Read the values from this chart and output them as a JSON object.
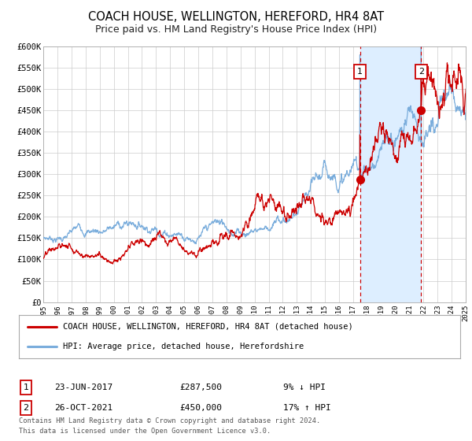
{
  "title": "COACH HOUSE, WELLINGTON, HEREFORD, HR4 8AT",
  "subtitle": "Price paid vs. HM Land Registry's House Price Index (HPI)",
  "title_fontsize": 10.5,
  "subtitle_fontsize": 9,
  "xlim": [
    1995,
    2025
  ],
  "ylim": [
    0,
    600000
  ],
  "yticks": [
    0,
    50000,
    100000,
    150000,
    200000,
    250000,
    300000,
    350000,
    400000,
    450000,
    500000,
    550000,
    600000
  ],
  "ytick_labels": [
    "£0",
    "£50K",
    "£100K",
    "£150K",
    "£200K",
    "£250K",
    "£300K",
    "£350K",
    "£400K",
    "£450K",
    "£500K",
    "£550K",
    "£600K"
  ],
  "xticks": [
    1995,
    1996,
    1997,
    1998,
    1999,
    2000,
    2001,
    2002,
    2003,
    2004,
    2005,
    2006,
    2007,
    2008,
    2009,
    2010,
    2011,
    2012,
    2013,
    2014,
    2015,
    2016,
    2017,
    2018,
    2019,
    2020,
    2021,
    2022,
    2023,
    2024,
    2025
  ],
  "property_color": "#cc0000",
  "hpi_color": "#7aaddc",
  "vline_color": "#cc0000",
  "shade_color": "#ddeeff",
  "annotation_box_color": "#cc0000",
  "background_color": "#ffffff",
  "grid_color": "#cccccc",
  "legend_label_property": "COACH HOUSE, WELLINGTON, HEREFORD, HR4 8AT (detached house)",
  "legend_label_hpi": "HPI: Average price, detached house, Herefordshire",
  "marker1_year": 2017.48,
  "marker1_value": 287500,
  "marker2_year": 2021.82,
  "marker2_value": 450000,
  "marker1_date": "23-JUN-2017",
  "marker1_price": "£287,500",
  "marker1_pct": "9% ↓ HPI",
  "marker2_date": "26-OCT-2021",
  "marker2_price": "£450,000",
  "marker2_pct": "17% ↑ HPI",
  "footer_line1": "Contains HM Land Registry data © Crown copyright and database right 2024.",
  "footer_line2": "This data is licensed under the Open Government Licence v3.0."
}
